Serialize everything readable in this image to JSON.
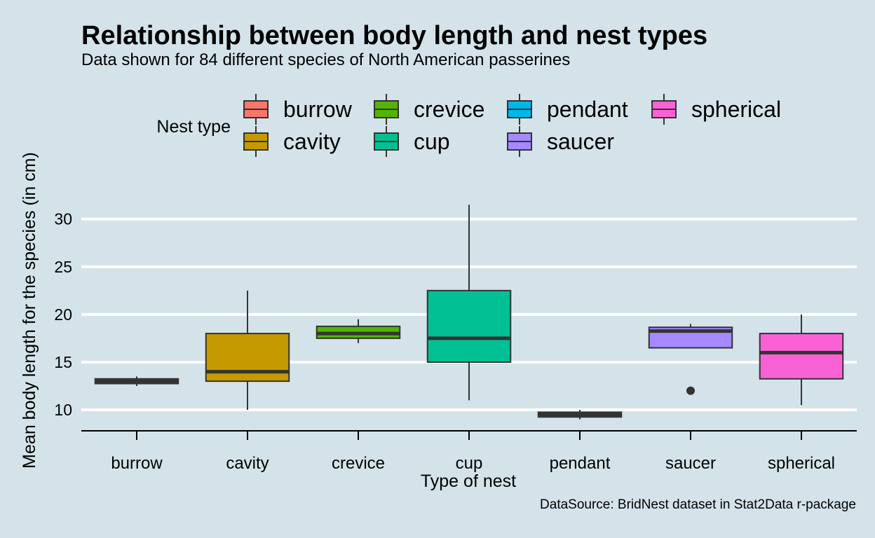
{
  "chart_data": {
    "type": "box",
    "title": "Relationship between body length and nest types",
    "subtitle": "Data shown for 84 different species of North American passerines",
    "caption": "DataSource: BridNest dataset in Stat2Data r-package",
    "xlabel": "Type of nest",
    "ylabel": "Mean body length for the species (in cm)",
    "legend_title": "Nest type",
    "legend_position": "top",
    "grid": true,
    "ylim": [
      7.8,
      33.5
    ],
    "yticks": [
      10,
      15,
      20,
      25,
      30
    ],
    "categories": [
      "burrow",
      "cavity",
      "crevice",
      "cup",
      "pendant",
      "saucer",
      "spherical"
    ],
    "series": [
      {
        "name": "burrow",
        "color": "#F8766D",
        "whisker_low": 12.5,
        "q1": 12.75,
        "median": 13.0,
        "q3": 13.25,
        "whisker_high": 13.5,
        "outliers": []
      },
      {
        "name": "cavity",
        "color": "#C49A00",
        "whisker_low": 10.0,
        "q1": 13.0,
        "median": 14.0,
        "q3": 18.0,
        "whisker_high": 22.5,
        "outliers": []
      },
      {
        "name": "crevice",
        "color": "#53B400",
        "whisker_low": 17.0,
        "q1": 17.5,
        "median": 18.0,
        "q3": 18.75,
        "whisker_high": 19.5,
        "outliers": []
      },
      {
        "name": "cup",
        "color": "#00C094",
        "whisker_low": 11.0,
        "q1": 15.0,
        "median": 17.5,
        "q3": 22.5,
        "whisker_high": 31.5,
        "outliers": []
      },
      {
        "name": "pendant",
        "color": "#00B6EB",
        "whisker_low": 9.0,
        "q1": 9.25,
        "median": 9.5,
        "q3": 9.75,
        "whisker_high": 10.0,
        "outliers": []
      },
      {
        "name": "saucer",
        "color": "#A58AFF",
        "whisker_low": 16.5,
        "q1": 16.5,
        "median": 18.25,
        "q3": 18.65,
        "whisker_high": 19.0,
        "outliers": [
          12.0
        ]
      },
      {
        "name": "spherical",
        "color": "#FB61D7",
        "whisker_low": 10.5,
        "q1": 13.25,
        "median": 16.0,
        "q3": 18.0,
        "whisker_high": 20.0,
        "outliers": []
      }
    ]
  }
}
